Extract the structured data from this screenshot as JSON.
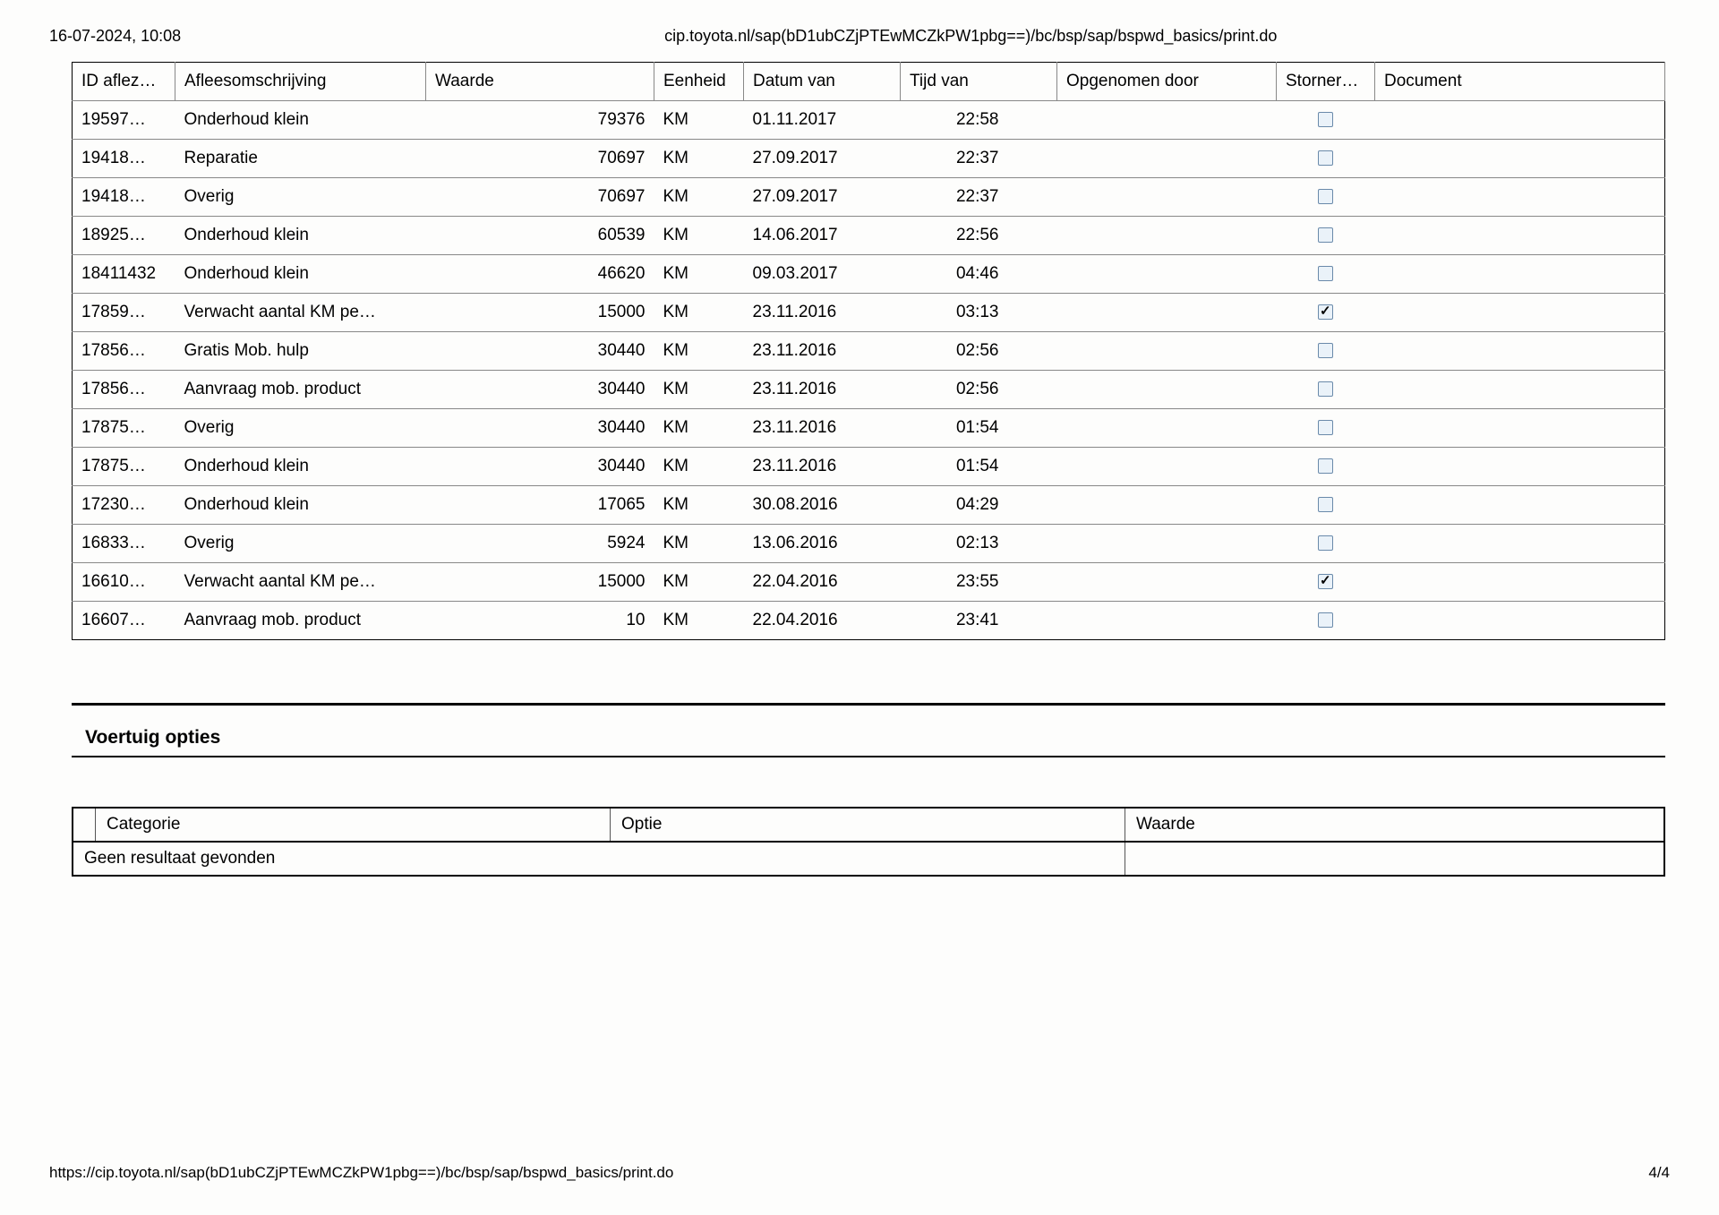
{
  "header": {
    "timestamp": "16-07-2024, 10:08",
    "url_short": "cip.toyota.nl/sap(bD1ubCZjPTEwMCZkPW1pbg==)/bc/bsp/sap/bspwd_basics/print.do"
  },
  "main_table": {
    "columns": {
      "id": "ID aflez…",
      "aflees": "Afleesomschrijving",
      "waarde": "Waarde",
      "eenheid": "Eenheid",
      "datum": "Datum van",
      "tijd": "Tijd van",
      "opgenomen": "Opgenomen door",
      "storner": "Storner…",
      "document": "Document"
    },
    "rows": [
      {
        "id": "19597…",
        "aflees": "Onderhoud klein",
        "waarde": "79376",
        "eenheid": "KM",
        "datum": "01.11.2017",
        "tijd": "22:58",
        "opgenomen": "",
        "storner_checked": false
      },
      {
        "id": "19418…",
        "aflees": "Reparatie",
        "waarde": "70697",
        "eenheid": "KM",
        "datum": "27.09.2017",
        "tijd": "22:37",
        "opgenomen": "",
        "storner_checked": false
      },
      {
        "id": "19418…",
        "aflees": "Overig",
        "waarde": "70697",
        "eenheid": "KM",
        "datum": "27.09.2017",
        "tijd": "22:37",
        "opgenomen": "",
        "storner_checked": false
      },
      {
        "id": "18925…",
        "aflees": "Onderhoud klein",
        "waarde": "60539",
        "eenheid": "KM",
        "datum": "14.06.2017",
        "tijd": "22:56",
        "opgenomen": "",
        "storner_checked": false
      },
      {
        "id": "18411432",
        "aflees": "Onderhoud klein",
        "waarde": "46620",
        "eenheid": "KM",
        "datum": "09.03.2017",
        "tijd": "04:46",
        "opgenomen": "",
        "storner_checked": false
      },
      {
        "id": "17859…",
        "aflees": "Verwacht aantal KM pe…",
        "waarde": "15000",
        "eenheid": "KM",
        "datum": "23.11.2016",
        "tijd": "03:13",
        "opgenomen": "",
        "storner_checked": true
      },
      {
        "id": "17856…",
        "aflees": "Gratis Mob. hulp",
        "waarde": "30440",
        "eenheid": "KM",
        "datum": "23.11.2016",
        "tijd": "02:56",
        "opgenomen": "",
        "storner_checked": false
      },
      {
        "id": "17856…",
        "aflees": "Aanvraag mob. product",
        "waarde": "30440",
        "eenheid": "KM",
        "datum": "23.11.2016",
        "tijd": "02:56",
        "opgenomen": "",
        "storner_checked": false
      },
      {
        "id": "17875…",
        "aflees": "Overig",
        "waarde": "30440",
        "eenheid": "KM",
        "datum": "23.11.2016",
        "tijd": "01:54",
        "opgenomen": "",
        "storner_checked": false
      },
      {
        "id": "17875…",
        "aflees": "Onderhoud klein",
        "waarde": "30440",
        "eenheid": "KM",
        "datum": "23.11.2016",
        "tijd": "01:54",
        "opgenomen": "",
        "storner_checked": false
      },
      {
        "id": "17230…",
        "aflees": "Onderhoud klein",
        "waarde": "17065",
        "eenheid": "KM",
        "datum": "30.08.2016",
        "tijd": "04:29",
        "opgenomen": "",
        "storner_checked": false
      },
      {
        "id": "16833…",
        "aflees": "Overig",
        "waarde": "5924",
        "eenheid": "KM",
        "datum": "13.06.2016",
        "tijd": "02:13",
        "opgenomen": "",
        "storner_checked": false
      },
      {
        "id": "16610…",
        "aflees": "Verwacht aantal KM pe…",
        "waarde": "15000",
        "eenheid": "KM",
        "datum": "22.04.2016",
        "tijd": "23:55",
        "opgenomen": "",
        "storner_checked": true
      },
      {
        "id": "16607…",
        "aflees": "Aanvraag mob. product",
        "waarde": "10",
        "eenheid": "KM",
        "datum": "22.04.2016",
        "tijd": "23:41",
        "opgenomen": "",
        "storner_checked": false
      }
    ]
  },
  "options_section": {
    "title": "Voertuig opties",
    "columns": {
      "categorie": "Categorie",
      "optie": "Optie",
      "waarde": "Waarde"
    },
    "no_result": "Geen resultaat gevonden"
  },
  "footer": {
    "url_full": "https://cip.toyota.nl/sap(bD1ubCZjPTEwMCZkPW1pbg==)/bc/bsp/sap/bspwd_basics/print.do",
    "page": "4/4"
  },
  "colors": {
    "background": "#fdfdfc",
    "border_dark": "#000000",
    "border_light": "#888888",
    "checkbox_bg": "#eaf2f9",
    "checkbox_border": "#6a8aaa"
  }
}
